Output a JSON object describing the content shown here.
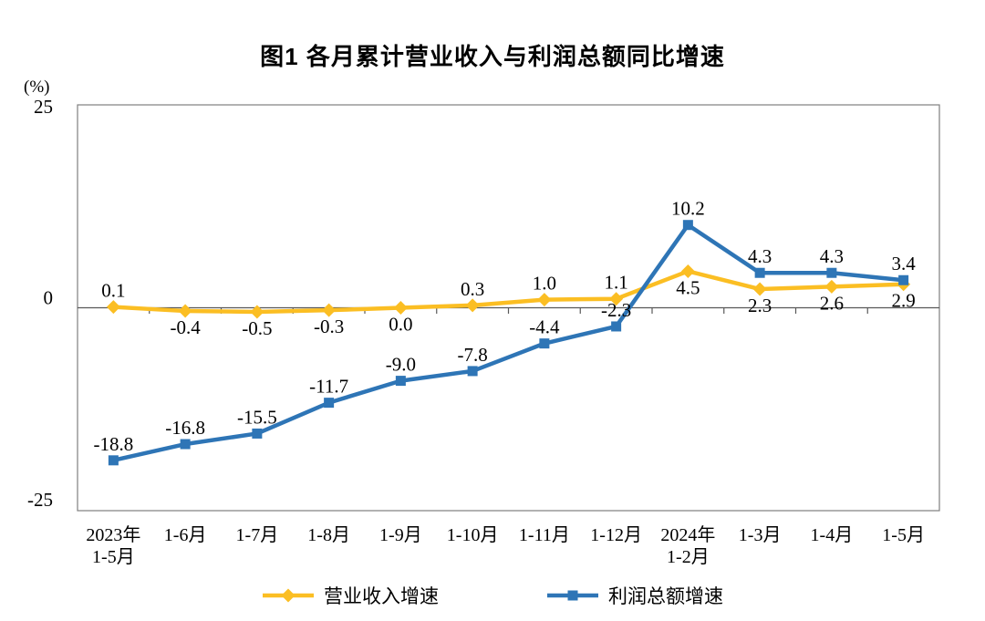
{
  "page": {
    "background": "#ffffff"
  },
  "chart_data": {
    "type": "line",
    "title": "图1 各月累计营业收入与利润总额同比增速",
    "unit_label": "(%)",
    "categories": [
      "2023年\n1-5月",
      "1-6月",
      "1-7月",
      "1-8月",
      "1-9月",
      "1-10月",
      "1-11月",
      "1-12月",
      "2024年\n1-2月",
      "1-3月",
      "1-4月",
      "1-5月"
    ],
    "series": [
      {
        "name": "营业收入增速",
        "color": "#FBBE23",
        "marker": "diamond",
        "values": [
          0.1,
          -0.4,
          -0.5,
          -0.3,
          0.0,
          0.3,
          1.0,
          1.1,
          4.5,
          2.3,
          2.6,
          2.9
        ],
        "label_positions": [
          "above",
          "below",
          "below",
          "below",
          "below",
          "above",
          "above",
          "above",
          "below",
          "below",
          "below",
          "below"
        ]
      },
      {
        "name": "利润总额增速",
        "color": "#2E75B6",
        "marker": "square",
        "values": [
          -18.8,
          -16.8,
          -15.5,
          -11.7,
          -9.0,
          -7.8,
          -4.4,
          -2.3,
          10.2,
          4.3,
          4.3,
          3.4
        ],
        "label_positions": [
          "above",
          "above",
          "above",
          "above",
          "above",
          "above",
          "above",
          "above",
          "above",
          "above",
          "above",
          "above"
        ]
      }
    ],
    "ylim": [
      -25,
      25
    ],
    "yticks": [
      25,
      0,
      -25
    ],
    "grid": false,
    "legend_position": "bottom",
    "axis_color": "#7F7F7F",
    "zero_line_color": "#595959",
    "text_color": "#000000"
  }
}
